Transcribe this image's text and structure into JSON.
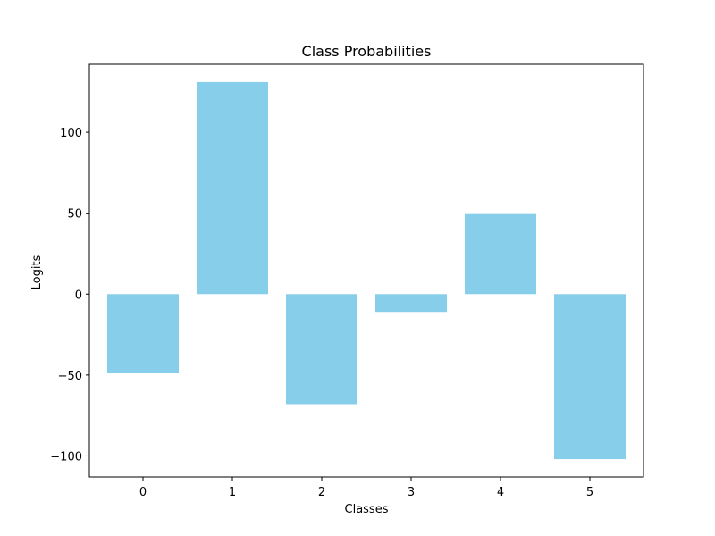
{
  "chart_data": {
    "type": "bar",
    "title": "Class Probabilities",
    "xlabel": "Classes",
    "ylabel": "Logits",
    "categories": [
      "0",
      "1",
      "2",
      "3",
      "4",
      "5"
    ],
    "values": [
      -49,
      131,
      -68,
      -11,
      50,
      -102
    ],
    "ylim": [
      -113,
      142
    ],
    "yticks": [
      -100,
      -50,
      0,
      50,
      100
    ],
    "yticks_labels": [
      "−100",
      "−50",
      "0",
      "50",
      "100"
    ],
    "bar_color": "#87ceeb",
    "grid": false,
    "legend": "none"
  }
}
